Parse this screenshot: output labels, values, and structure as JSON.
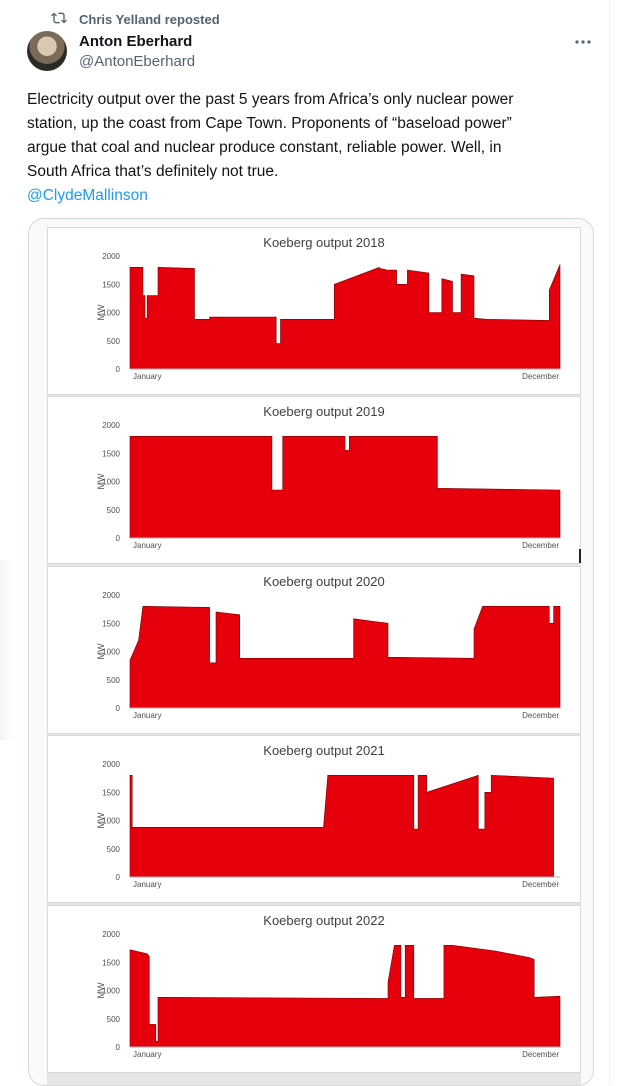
{
  "repost": {
    "label": "Chris Yelland reposted",
    "icon": "repost-icon"
  },
  "author": {
    "name": "Anton Eberhard",
    "handle": "@AntonEberhard",
    "avatar_icon": "avatar"
  },
  "more_icon": "more-icon",
  "tweet": {
    "lines": [
      "Electricity output over the past 5 years from Africa’s only nuclear power",
      "station, up the coast from Cape Town. Proponents of “baseload power”",
      "argue that coal and nuclear produce constant, reliable power. Well, in",
      "South Africa that’s definitely not true."
    ],
    "mention": "@ClydeMallinson"
  },
  "colors": {
    "bar_fill": "#e5000b",
    "accent": "#1d9bf0",
    "muted": "#536471"
  },
  "chart_data": [
    {
      "type": "area",
      "title": "Koeberg output 2018",
      "ylabel": "MW",
      "ylim": [
        0,
        2000
      ],
      "yticks": [
        0,
        500,
        1000,
        1500,
        2000
      ],
      "xlabels": [
        "January",
        "December"
      ],
      "x": [
        0.0,
        0.03,
        0.03,
        0.035,
        0.035,
        0.04,
        0.04,
        0.065,
        0.065,
        0.15,
        0.15,
        0.185,
        0.185,
        0.34,
        0.34,
        0.35,
        0.35,
        0.475,
        0.475,
        0.58,
        0.58,
        0.595,
        0.595,
        0.62,
        0.62,
        0.645,
        0.645,
        0.695,
        0.695,
        0.725,
        0.725,
        0.75,
        0.75,
        0.77,
        0.77,
        0.8,
        0.8,
        0.83,
        0.83,
        0.975,
        0.975,
        1.0
      ],
      "values": [
        1800,
        1800,
        1300,
        1300,
        900,
        900,
        1300,
        1300,
        1800,
        1780,
        880,
        880,
        920,
        920,
        450,
        450,
        880,
        880,
        1500,
        1800,
        1780,
        1760,
        1750,
        1750,
        1500,
        1500,
        1750,
        1700,
        1000,
        1000,
        1600,
        1550,
        1000,
        1000,
        1680,
        1650,
        900,
        880,
        880,
        860,
        1400,
        1850
      ]
    },
    {
      "type": "area",
      "title": "Koeberg output 2019",
      "ylabel": "MW",
      "ylim": [
        0,
        2000
      ],
      "yticks": [
        0,
        500,
        1000,
        1500,
        2000
      ],
      "xlabels": [
        "January",
        "December"
      ],
      "x": [
        0.0,
        0.33,
        0.33,
        0.355,
        0.355,
        0.5,
        0.5,
        0.51,
        0.51,
        0.715,
        0.715,
        1.0
      ],
      "values": [
        1800,
        1800,
        850,
        850,
        1800,
        1800,
        1550,
        1550,
        1800,
        1800,
        880,
        850
      ]
    },
    {
      "type": "area",
      "title": "Koeberg output 2020",
      "ylabel": "MW",
      "ylim": [
        0,
        2000
      ],
      "yticks": [
        0,
        500,
        1000,
        1500,
        2000
      ],
      "xlabels": [
        "January",
        "December"
      ],
      "x": [
        0.0,
        0.02,
        0.03,
        0.185,
        0.185,
        0.2,
        0.2,
        0.255,
        0.255,
        0.52,
        0.52,
        0.6,
        0.6,
        0.8,
        0.8,
        0.82,
        0.82,
        0.975,
        0.975,
        0.985,
        0.985,
        1.0
      ],
      "values": [
        850,
        1200,
        1800,
        1780,
        800,
        800,
        1700,
        1650,
        880,
        880,
        1580,
        1500,
        900,
        880,
        1400,
        1800,
        1800,
        1800,
        1500,
        1500,
        1800,
        1800
      ]
    },
    {
      "type": "area",
      "title": "Koeberg output 2021",
      "ylabel": "MW",
      "ylim": [
        0,
        2000
      ],
      "yticks": [
        0,
        500,
        1000,
        1500,
        2000
      ],
      "xlabels": [
        "January",
        "December"
      ],
      "x": [
        0.0,
        0.005,
        0.005,
        0.45,
        0.46,
        0.66,
        0.66,
        0.67,
        0.67,
        0.69,
        0.69,
        0.81,
        0.81,
        0.825,
        0.825,
        0.84,
        0.84,
        0.985
      ],
      "values": [
        1800,
        1800,
        880,
        880,
        1800,
        1800,
        850,
        850,
        1800,
        1800,
        1500,
        1800,
        850,
        850,
        1500,
        1500,
        1800,
        1750
      ]
    },
    {
      "type": "area",
      "title": "Koeberg output 2022",
      "ylabel": "MW",
      "ylim": [
        0,
        2000
      ],
      "yticks": [
        0,
        500,
        1000,
        1500,
        2000
      ],
      "xlabels": [
        "January",
        "December"
      ],
      "x": [
        0.0,
        0.04,
        0.045,
        0.045,
        0.06,
        0.06,
        0.065,
        0.065,
        0.6,
        0.6,
        0.615,
        0.63,
        0.63,
        0.64,
        0.64,
        0.66,
        0.66,
        0.675,
        0.675,
        0.73,
        0.73,
        0.75,
        0.85,
        0.93,
        0.94,
        0.94,
        1.0
      ],
      "values": [
        1720,
        1650,
        1600,
        400,
        400,
        100,
        100,
        880,
        860,
        1150,
        1800,
        1800,
        880,
        880,
        1800,
        1800,
        860,
        860,
        860,
        860,
        1800,
        1800,
        1700,
        1580,
        1550,
        880,
        900
      ]
    }
  ]
}
